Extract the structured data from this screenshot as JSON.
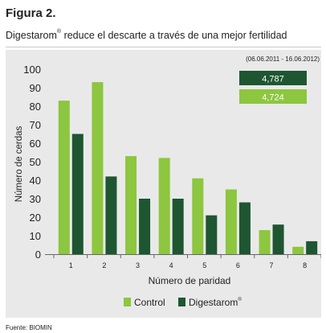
{
  "figure": {
    "label": "Figura 2.",
    "subtitle_main": "Digestarom",
    "subtitle_reg": "®",
    "subtitle_rest": " reduce el descarte a través de una mejor fertilidad",
    "date_range": "(06.06.2011 - 16.06.2012)",
    "source": "Fuente: BIOMIN"
  },
  "colors": {
    "control": "#8dc63f",
    "digestarom": "#1e5631",
    "background": "#e9e9ea"
  },
  "chart_data": {
    "type": "bar",
    "categories": [
      "1",
      "2",
      "3",
      "4",
      "5",
      "6",
      "7",
      "8"
    ],
    "series": [
      {
        "name": "Control",
        "values": [
          83,
          93,
          53,
          52,
          41,
          35,
          13,
          4
        ]
      },
      {
        "name": "Digestarom®",
        "values": [
          65,
          42,
          30,
          30,
          21,
          28,
          16,
          7
        ]
      }
    ],
    "xlabel": "Número de paridad",
    "ylabel": "Número de cerdas",
    "ylim": [
      0,
      100
    ],
    "yticks": [
      "0",
      "10",
      "20",
      "30",
      "40",
      "50",
      "60",
      "70",
      "80",
      "90",
      "100"
    ],
    "grid": false,
    "legend_position": "bottom",
    "legend": [
      {
        "label": "Control"
      },
      {
        "label": "Digestarom",
        "reg": "®"
      }
    ],
    "value_boxes": [
      {
        "value": "4,787",
        "series": "Digestarom®"
      },
      {
        "value": "4,724",
        "series": "Control"
      }
    ]
  }
}
